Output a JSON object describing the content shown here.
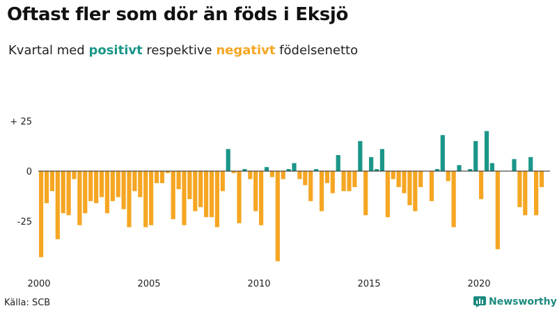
{
  "title": "Oftast fler som dör än föds i Eksjö",
  "subtitle": {
    "prefix": "Kvartal med ",
    "positive_word": "positivt",
    "middle": " respektive ",
    "negative_word": "negativt",
    "suffix": " födelsenetto"
  },
  "colors": {
    "positive": "#1b9688",
    "negative": "#f5a623",
    "zero_line": "#222222"
  },
  "source": "Källa: SCB",
  "brand": {
    "name": "Newsworthy",
    "icon": "bar-chart-icon"
  },
  "chart_data": {
    "type": "bar",
    "title": "Oftast fler som dör än föds i Eksjö",
    "ylim": [
      -46,
      27
    ],
    "y_ticks": [
      {
        "value": 25,
        "label": "+ 25"
      },
      {
        "value": 0,
        "label": "0"
      },
      {
        "value": -25,
        "label": "-25"
      }
    ],
    "x_ticks": [
      "2000",
      "2005",
      "2010",
      "2015",
      "2020"
    ],
    "grid": false,
    "start_year": 2000,
    "values": [
      -43,
      -16,
      -10,
      -34,
      -21,
      -22,
      -4,
      -27,
      -21,
      -15,
      -16,
      -13,
      -21,
      -15,
      -13,
      -19,
      -28,
      -10,
      -13,
      -28,
      -27,
      -6,
      -6,
      -1,
      -24,
      -9,
      -27,
      -14,
      -20,
      -18,
      -23,
      -23,
      -28,
      -10,
      11,
      -1,
      -26,
      1,
      -4,
      -20,
      -27,
      2,
      -3,
      -45,
      -4,
      1,
      4,
      -4,
      -7,
      -15,
      1,
      -20,
      -6,
      -11,
      8,
      -10,
      -10,
      -8,
      15,
      -22,
      7,
      1,
      11,
      -23,
      -4,
      -8,
      -11,
      -17,
      -20,
      -8,
      0,
      -15,
      1,
      18,
      -5,
      -28,
      3,
      0,
      1,
      15,
      -14,
      20,
      4,
      -39,
      0,
      0,
      6,
      -18,
      -22,
      7,
      -22,
      -8
    ]
  }
}
